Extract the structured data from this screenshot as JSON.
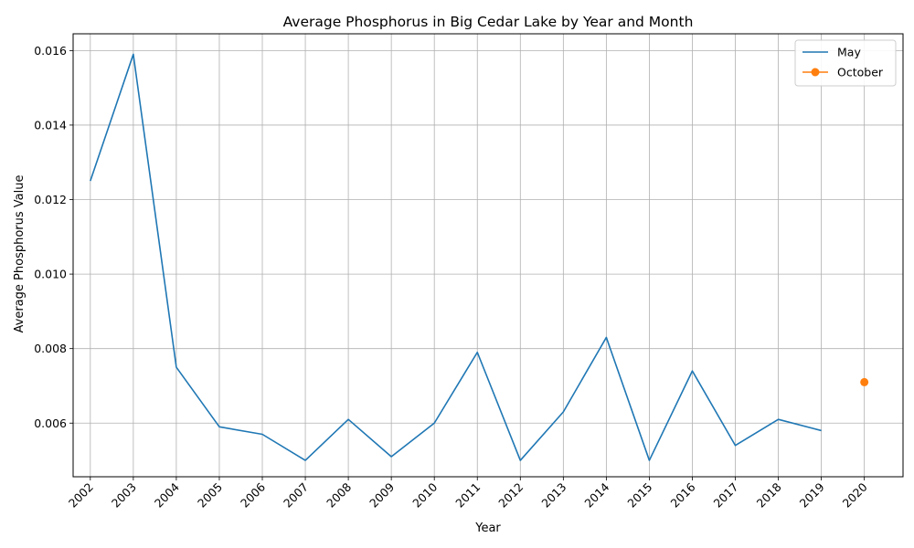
{
  "chart_data": {
    "type": "line",
    "title": "Average Phosphorus in Big Cedar Lake by Year and Month",
    "xlabel": "Year",
    "ylabel": "Average Phosphorus Value",
    "x": [
      2002,
      2003,
      2004,
      2005,
      2006,
      2007,
      2008,
      2009,
      2010,
      2011,
      2012,
      2013,
      2014,
      2015,
      2016,
      2017,
      2018,
      2019,
      2020
    ],
    "x_tick_labels": [
      "2002",
      "2003",
      "2004",
      "2005",
      "2006",
      "2007",
      "2008",
      "2009",
      "2010",
      "2011",
      "2012",
      "2013",
      "2014",
      "2015",
      "2016",
      "2017",
      "2018",
      "2019",
      "2020"
    ],
    "y_ticks": [
      0.006,
      0.008,
      0.01,
      0.012,
      0.014,
      0.016
    ],
    "y_tick_labels": [
      "0.006",
      "0.008",
      "0.010",
      "0.012",
      "0.014",
      "0.016"
    ],
    "xlim": [
      2001.6,
      2020.9
    ],
    "ylim": [
      0.00456,
      0.01645
    ],
    "grid": true,
    "legend_position": "top-right",
    "series": [
      {
        "name": "May",
        "color": "#1f77b4",
        "marker": "none",
        "points": [
          [
            2002,
            0.0125
          ],
          [
            2003,
            0.0159
          ],
          [
            2004,
            0.0075
          ],
          [
            2005,
            0.0059
          ],
          [
            2006,
            0.0057
          ],
          [
            2007,
            0.005
          ],
          [
            2008,
            0.0061
          ],
          [
            2009,
            0.0051
          ],
          [
            2010,
            0.006
          ],
          [
            2011,
            0.0079
          ],
          [
            2012,
            0.005
          ],
          [
            2013,
            0.0063
          ],
          [
            2014,
            0.0083
          ],
          [
            2015,
            0.005
          ],
          [
            2016,
            0.0074
          ],
          [
            2017,
            0.0054
          ],
          [
            2018,
            0.0061
          ],
          [
            2019,
            0.0058
          ]
        ]
      },
      {
        "name": "October",
        "color": "#ff7f0e",
        "marker": "circle",
        "points": [
          [
            2020,
            0.0071
          ]
        ]
      }
    ]
  }
}
